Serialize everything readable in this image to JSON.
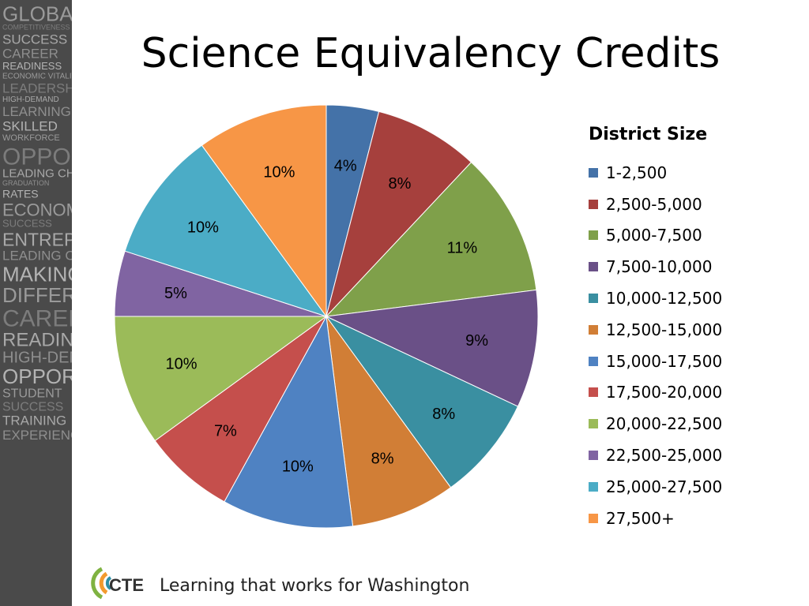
{
  "chart_data": {
    "type": "pie",
    "title": "Science Equivalency Credits",
    "legend_title": "District Size",
    "legend_position": "right",
    "categories": [
      "1-2,500",
      "2,500-5,000",
      "5,000-7,500",
      "7,500-10,000",
      "10,000-12,500",
      "12,500-15,000",
      "15,000-17,500",
      "17,500-20,000",
      "20,000-22,500",
      "22,500-25,000",
      "25,000-27,500",
      "27,500+"
    ],
    "values": [
      4,
      8,
      11,
      9,
      8,
      8,
      10,
      7,
      10,
      5,
      10,
      10
    ],
    "data_labels": [
      "4%",
      "8%",
      "11%",
      "9%",
      "8%",
      "8%",
      "10%",
      "7%",
      "10%",
      "5%",
      "10%",
      "10%"
    ],
    "colors": [
      "#4472A8",
      "#A6403D",
      "#7FA04A",
      "#6A5087",
      "#3A8FA1",
      "#D17E36",
      "#4F82C2",
      "#C54F4C",
      "#9BBB59",
      "#8064A2",
      "#4BACC6",
      "#F79646"
    ]
  },
  "sidebar": {
    "words": [
      "GLOBAL",
      "COMPETITIVENESS",
      "SUCCESS",
      "CAREER",
      "READINESS",
      "ECONOMIC VITALITY",
      "LEADERSHIP",
      "HIGH-DEMAND",
      "LEARNING",
      "SKILLED",
      "WORKFORCE",
      "OPPORTUNITY",
      "LEADING CHANGE",
      "GRADUATION",
      "RATES",
      "ECONOMIC",
      "SUCCESS",
      "ENTREPRENEUR",
      "LEADING CHANGE",
      "MAKING A",
      "DIFFERENCE",
      "CAREER",
      "READINESS",
      "HIGH-DEMAND",
      "OPPORTUNITY",
      "STUDENT",
      "SUCCESS",
      "TRAINING",
      "EXPERIENCE"
    ]
  },
  "footer": {
    "logo_text": "CTE",
    "tagline": "Learning that works for Washington"
  }
}
